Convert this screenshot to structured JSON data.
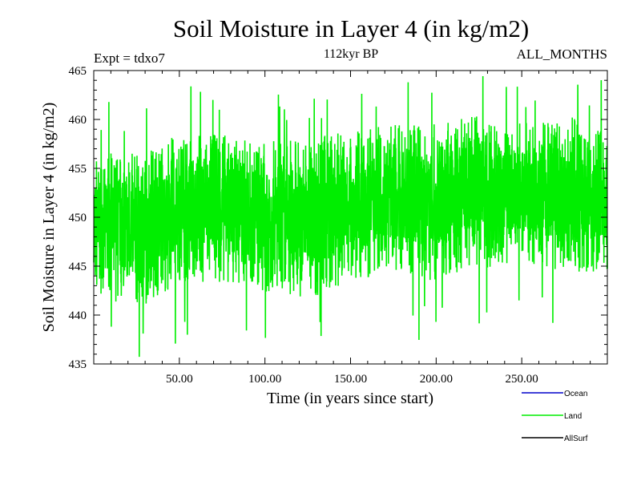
{
  "chart_data": {
    "type": "line",
    "title": "Soil Moisture in Layer 4 (in kg/m2)",
    "subtitle": "112kyr BP",
    "header_left": "Expt = tdxo7",
    "header_right": "ALL_MONTHS",
    "xlabel": "Time (in years since start)",
    "ylabel": "Soil Moisture in Layer 4 (in kg/m2)",
    "xlim": [
      0,
      300
    ],
    "ylim": [
      435,
      465
    ],
    "xticks": [
      50,
      100,
      150,
      200,
      250
    ],
    "xtick_labels": [
      "50.00",
      "100.00",
      "150.00",
      "200.00",
      "250.00"
    ],
    "yticks": [
      435,
      440,
      445,
      450,
      455,
      460,
      465
    ],
    "ytick_labels": [
      "435",
      "440",
      "445",
      "450",
      "455",
      "460",
      "465"
    ],
    "grid": false,
    "legend_position": "bottom-right",
    "series": [
      {
        "name": "Ocean",
        "color": "#0000cc",
        "values": []
      },
      {
        "name": "Land",
        "color": "#00ee00",
        "mean": 450,
        "min": 435.5,
        "max": 465,
        "note": "monthly values oscillating roughly between 442 and 458 across the full record"
      },
      {
        "name": "AllSurf",
        "color": "#000000",
        "values": []
      }
    ],
    "land_envelope": {
      "x": [
        0,
        25,
        50,
        75,
        100,
        125,
        150,
        175,
        200,
        225,
        250,
        275,
        300
      ],
      "upper": [
        457,
        457,
        459,
        459,
        458,
        459,
        459,
        460,
        460,
        461,
        460,
        461,
        459
      ],
      "lower": [
        442,
        440,
        443,
        443,
        442,
        441,
        443,
        444,
        443,
        444,
        445,
        444,
        444
      ]
    }
  }
}
